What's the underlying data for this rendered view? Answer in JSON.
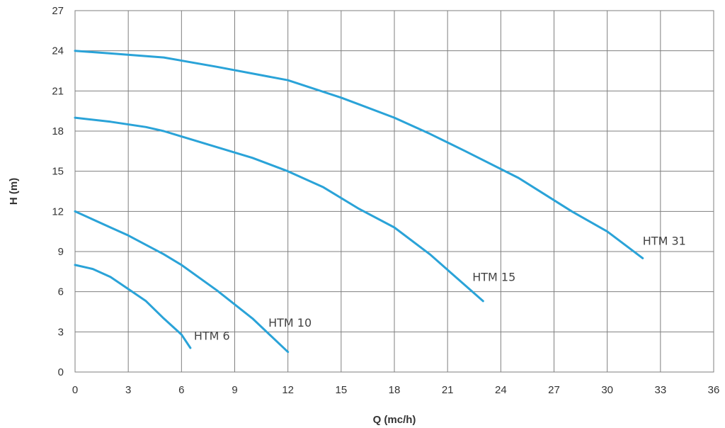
{
  "chart_data": {
    "type": "line",
    "title": "",
    "xlabel": "Q (mc/h)",
    "ylabel": "H (m)",
    "xlim": [
      0,
      36
    ],
    "ylim": [
      0,
      27
    ],
    "xticks": [
      0,
      3,
      6,
      9,
      12,
      15,
      18,
      21,
      24,
      27,
      30,
      33,
      36
    ],
    "yticks": [
      0,
      3,
      6,
      9,
      12,
      15,
      18,
      21,
      24,
      27
    ],
    "grid": true,
    "line_color": "#2aa3d8",
    "series": [
      {
        "name": "HTM 6",
        "x": [
          0,
          1,
          2,
          3,
          4,
          5,
          6,
          6.5
        ],
        "y": [
          8.0,
          7.7,
          7.1,
          6.2,
          5.3,
          4.0,
          2.8,
          1.8
        ]
      },
      {
        "name": "HTM 10",
        "x": [
          0,
          2,
          3,
          4,
          5,
          6,
          8,
          10,
          12
        ],
        "y": [
          12.0,
          10.8,
          10.2,
          9.5,
          8.8,
          8.0,
          6.1,
          4.0,
          1.5
        ]
      },
      {
        "name": "HTM 15",
        "x": [
          0,
          2,
          4,
          5,
          6,
          8,
          10,
          12,
          14,
          16,
          18,
          20,
          23
        ],
        "y": [
          19.0,
          18.7,
          18.3,
          18.0,
          17.6,
          16.8,
          16.0,
          15.0,
          13.8,
          12.2,
          10.8,
          8.8,
          5.3
        ]
      },
      {
        "name": "HTM 31",
        "x": [
          0,
          2,
          5,
          8,
          12,
          15,
          18,
          20,
          22,
          25,
          28,
          30,
          32
        ],
        "y": [
          24.0,
          23.8,
          23.5,
          22.8,
          21.8,
          20.5,
          19.0,
          17.8,
          16.5,
          14.5,
          12.0,
          10.5,
          8.5
        ]
      }
    ],
    "labels": [
      {
        "text": "HTM 6",
        "x": 6.7,
        "y": 2.4
      },
      {
        "text": "HTM 10",
        "x": 10.9,
        "y": 3.4
      },
      {
        "text": "HTM 15",
        "x": 22.4,
        "y": 6.8
      },
      {
        "text": "HTM 31",
        "x": 32.0,
        "y": 9.5
      }
    ]
  }
}
